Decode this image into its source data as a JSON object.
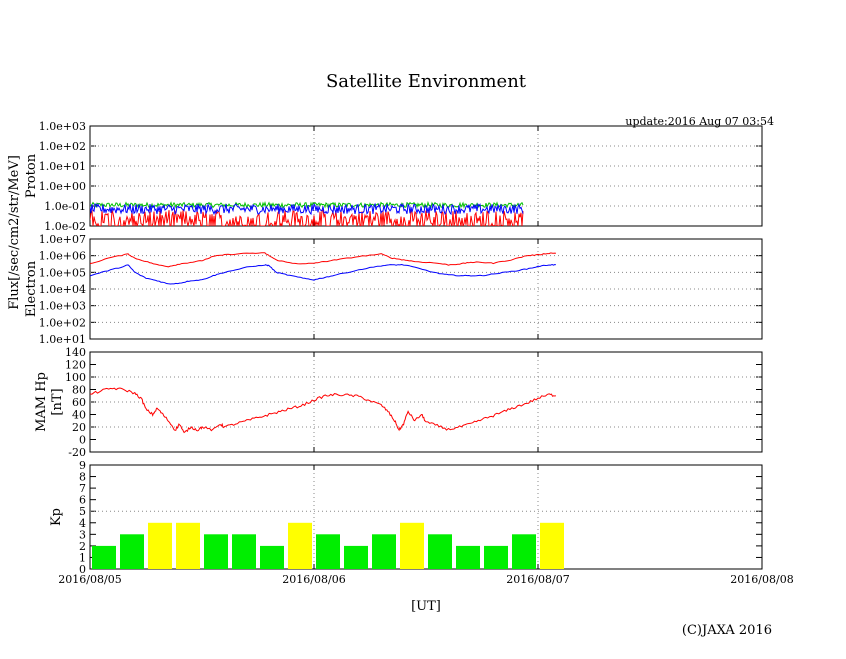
{
  "page": {
    "title": "Satellite Environment",
    "update": "update:2016 Aug 07 03:54",
    "xlabel": "[UT]",
    "copyright": "(C)JAXA 2016",
    "shared_ylabel": "Flux[/sec/cm2/str/MeV]"
  },
  "chart_data": [
    {
      "type": "line",
      "name": "proton",
      "ylabel": "Proton",
      "yscale": "log",
      "ylim_exp": [
        -2,
        3
      ],
      "yticks": [
        "1.0e-02",
        "1.0e-01",
        "1.0e+00",
        "1.0e+01",
        "1.0e+02",
        "1.0e+03"
      ],
      "grid": true,
      "x_start": "2016/08/05",
      "x_end": "2016/08/08",
      "data_end_fraction": 0.645,
      "series": [
        {
          "color": "#00c000",
          "mean_exp": -0.95,
          "noise_exp": 0.12
        },
        {
          "color": "#ff0000",
          "mean_exp": -1.6,
          "noise_exp": 0.4
        },
        {
          "color": "#0000ff",
          "mean_exp": -1.15,
          "noise_exp": 0.25
        }
      ]
    },
    {
      "type": "line",
      "name": "electron",
      "ylabel": "Electron",
      "yscale": "log",
      "ylim_exp": [
        1,
        7
      ],
      "yticks": [
        "1.0e+01",
        "1.0e+02",
        "1.0e+03",
        "1.0e+04",
        "1.0e+05",
        "1.0e+06",
        "1.0e+07"
      ],
      "grid": true,
      "x_start": "2016/08/05",
      "x_end": "2016/08/08",
      "series": [
        {
          "color": "#ff0000",
          "points": [
            [
              0.0,
              5.5
            ],
            [
              0.08,
              5.85
            ],
            [
              0.17,
              6.1
            ],
            [
              0.2,
              5.85
            ],
            [
              0.25,
              5.65
            ],
            [
              0.3,
              5.45
            ],
            [
              0.35,
              5.35
            ],
            [
              0.4,
              5.5
            ],
            [
              0.45,
              5.6
            ],
            [
              0.5,
              5.7
            ],
            [
              0.55,
              5.95
            ],
            [
              0.6,
              6.05
            ],
            [
              0.7,
              6.15
            ],
            [
              0.78,
              6.15
            ],
            [
              0.8,
              6.0
            ],
            [
              0.83,
              5.75
            ],
            [
              0.88,
              5.6
            ],
            [
              0.95,
              5.5
            ],
            [
              1.0,
              5.55
            ],
            [
              1.05,
              5.65
            ],
            [
              1.1,
              5.75
            ],
            [
              1.2,
              5.95
            ],
            [
              1.3,
              6.1
            ],
            [
              1.35,
              5.85
            ],
            [
              1.4,
              5.75
            ],
            [
              1.45,
              5.65
            ],
            [
              1.55,
              5.55
            ],
            [
              1.6,
              5.45
            ],
            [
              1.65,
              5.5
            ],
            [
              1.7,
              5.6
            ],
            [
              1.75,
              5.6
            ],
            [
              1.8,
              5.55
            ],
            [
              1.88,
              5.75
            ],
            [
              1.95,
              6.0
            ],
            [
              2.0,
              6.05
            ],
            [
              2.05,
              6.15
            ],
            [
              2.08,
              6.15
            ]
          ]
        },
        {
          "color": "#0000ff",
          "points": [
            [
              0.0,
              4.8
            ],
            [
              0.08,
              5.1
            ],
            [
              0.15,
              5.35
            ],
            [
              0.17,
              5.45
            ],
            [
              0.2,
              5.0
            ],
            [
              0.25,
              4.65
            ],
            [
              0.3,
              4.5
            ],
            [
              0.35,
              4.3
            ],
            [
              0.4,
              4.35
            ],
            [
              0.45,
              4.5
            ],
            [
              0.5,
              4.55
            ],
            [
              0.55,
              4.8
            ],
            [
              0.6,
              5.0
            ],
            [
              0.7,
              5.3
            ],
            [
              0.78,
              5.45
            ],
            [
              0.8,
              5.4
            ],
            [
              0.83,
              5.0
            ],
            [
              0.88,
              4.85
            ],
            [
              0.95,
              4.65
            ],
            [
              1.0,
              4.55
            ],
            [
              1.05,
              4.7
            ],
            [
              1.1,
              4.85
            ],
            [
              1.2,
              5.15
            ],
            [
              1.3,
              5.4
            ],
            [
              1.35,
              5.45
            ],
            [
              1.4,
              5.45
            ],
            [
              1.45,
              5.3
            ],
            [
              1.55,
              4.95
            ],
            [
              1.6,
              4.85
            ],
            [
              1.65,
              4.8
            ],
            [
              1.7,
              4.8
            ],
            [
              1.75,
              4.8
            ],
            [
              1.8,
              4.9
            ],
            [
              1.88,
              5.05
            ],
            [
              1.95,
              5.2
            ],
            [
              2.0,
              5.35
            ],
            [
              2.05,
              5.45
            ],
            [
              2.08,
              5.45
            ]
          ]
        }
      ]
    },
    {
      "type": "line",
      "name": "mam-hp",
      "ylabel": "MAM Hp",
      "ylabel2": "[nT]",
      "ylim": [
        -20,
        140
      ],
      "yticks": [
        "-20",
        "0",
        "20",
        "40",
        "60",
        "80",
        "100",
        "120",
        "140"
      ],
      "grid": true,
      "x_start": "2016/08/05",
      "x_end": "2016/08/08",
      "series": [
        {
          "color": "#ff0000",
          "points": [
            [
              0.0,
              72
            ],
            [
              0.05,
              78
            ],
            [
              0.1,
              82
            ],
            [
              0.15,
              80
            ],
            [
              0.2,
              74
            ],
            [
              0.23,
              65
            ],
            [
              0.25,
              48
            ],
            [
              0.28,
              40
            ],
            [
              0.3,
              50
            ],
            [
              0.32,
              42
            ],
            [
              0.35,
              30
            ],
            [
              0.38,
              15
            ],
            [
              0.4,
              25
            ],
            [
              0.42,
              10
            ],
            [
              0.45,
              20
            ],
            [
              0.48,
              15
            ],
            [
              0.5,
              20
            ],
            [
              0.55,
              15
            ],
            [
              0.58,
              25
            ],
            [
              0.6,
              20
            ],
            [
              0.65,
              25
            ],
            [
              0.7,
              30
            ],
            [
              0.75,
              35
            ],
            [
              0.8,
              40
            ],
            [
              0.85,
              45
            ],
            [
              0.9,
              50
            ],
            [
              0.95,
              55
            ],
            [
              1.0,
              63
            ],
            [
              1.05,
              70
            ],
            [
              1.1,
              72
            ],
            [
              1.15,
              71
            ],
            [
              1.2,
              69
            ],
            [
              1.25,
              62
            ],
            [
              1.3,
              55
            ],
            [
              1.33,
              45
            ],
            [
              1.36,
              30
            ],
            [
              1.38,
              15
            ],
            [
              1.4,
              25
            ],
            [
              1.42,
              45
            ],
            [
              1.45,
              30
            ],
            [
              1.48,
              40
            ],
            [
              1.5,
              28
            ],
            [
              1.55,
              22
            ],
            [
              1.6,
              16
            ],
            [
              1.65,
              20
            ],
            [
              1.7,
              25
            ],
            [
              1.75,
              32
            ],
            [
              1.8,
              38
            ],
            [
              1.85,
              45
            ],
            [
              1.9,
              52
            ],
            [
              1.95,
              58
            ],
            [
              2.0,
              66
            ],
            [
              2.05,
              72
            ],
            [
              2.08,
              70
            ]
          ]
        }
      ]
    },
    {
      "type": "bar",
      "name": "kp",
      "ylabel": "Kp",
      "ylim": [
        0,
        9
      ],
      "yticks": [
        "0",
        "1",
        "2",
        "3",
        "4",
        "5",
        "6",
        "7",
        "8",
        "9"
      ],
      "grid": true,
      "gridline_at": 5,
      "x_start": "2016/08/05",
      "x_end": "2016/08/08",
      "xticks": [
        "2016/08/05",
        "2016/08/06",
        "2016/08/07",
        "2016/08/08"
      ],
      "bar_hours": 3,
      "values": [
        2,
        3,
        4,
        4,
        3,
        3,
        2,
        4,
        3,
        2,
        3,
        4,
        3,
        2,
        2,
        3,
        4
      ],
      "colors": {
        "normal": "#00ee00",
        "active": "#ffff00"
      },
      "active_threshold": 4
    }
  ]
}
